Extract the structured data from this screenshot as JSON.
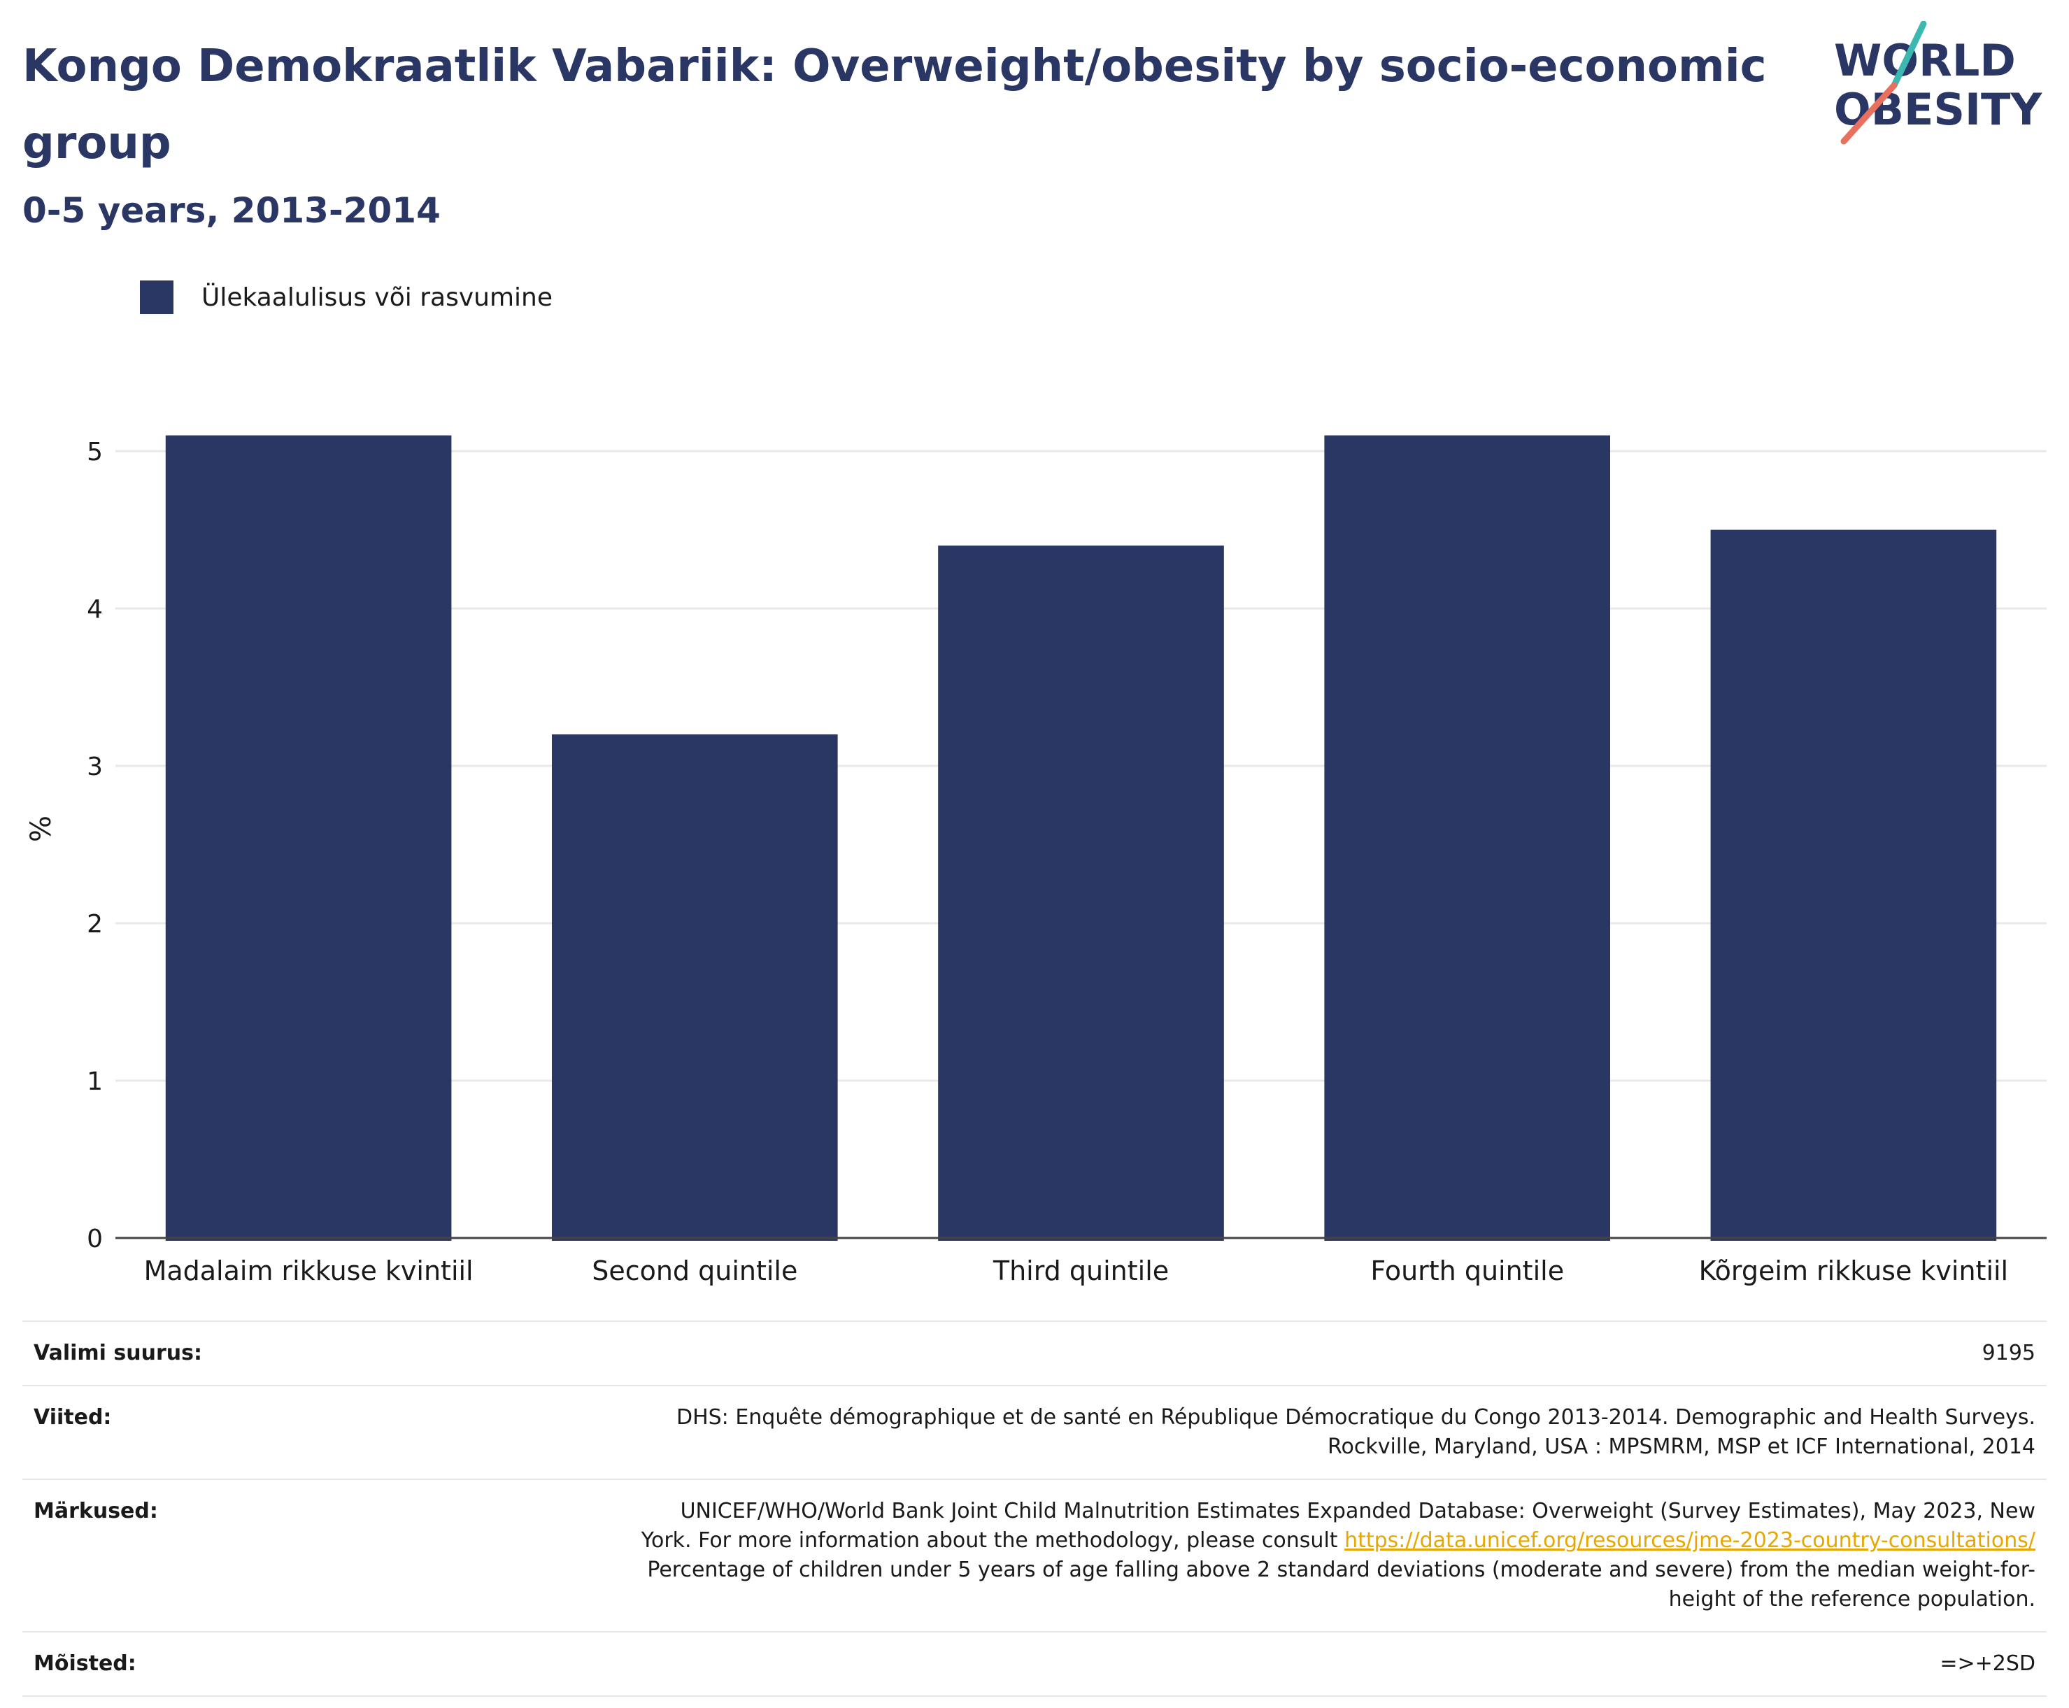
{
  "header": {
    "title": "Kongo Demokraatlik Vabariik: Overweight/obesity by socio-economic group",
    "subtitle": "0-5 years, 2013-2014"
  },
  "logo": {
    "line1": "WORLD",
    "line2": "OBESITY"
  },
  "colors": {
    "bar": "#2a3664",
    "title": "#2a3664",
    "grid": "#e8e8e8",
    "link": "#e6a800",
    "logo_teal": "#3bb8b0",
    "logo_coral": "#e8705f"
  },
  "chart_data": {
    "type": "bar",
    "categories": [
      "Madalaim rikkuse kvintiil",
      "Second quintile",
      "Third quintile",
      "Fourth quintile",
      "Kõrgeim rikkuse kvintiil"
    ],
    "series": [
      {
        "name": "Ülekaalulisus või rasvumine",
        "values": [
          5.1,
          3.2,
          4.4,
          5.1,
          4.5
        ]
      }
    ],
    "ylabel": "%",
    "ylim": [
      0,
      5.2
    ],
    "yticks": [
      0,
      1,
      2,
      3,
      4,
      5
    ],
    "grid": true,
    "legend_position": "top-left"
  },
  "info": {
    "sample_size": {
      "label": "Valimi suurus:",
      "value": "9195"
    },
    "references": {
      "label": "Viited:",
      "line1": "DHS: Enquête démographique et de santé en République Démocratique du Congo 2013-2014. Demographic and Health Surveys.",
      "line2": "Rockville, Maryland, USA : MPSMRM, MSP et ICF International, 2014"
    },
    "notes": {
      "label": "Märkused:",
      "line1": "UNICEF/WHO/World Bank Joint Child Malnutrition Estimates Expanded Database: Overweight (Survey Estimates), May 2023, New",
      "line2_prefix": "York. For more information about the methodology, please consult ",
      "link": "https://data.unicef.org/resources/jme-2023-country-consultations/",
      "line3": "Percentage of children under 5 years of age falling above 2 standard deviations (moderate and severe) from the median weight-for-",
      "line4": "height of the reference population."
    },
    "definitions": {
      "label": "Mõisted:",
      "value": "=>+2SD"
    }
  }
}
